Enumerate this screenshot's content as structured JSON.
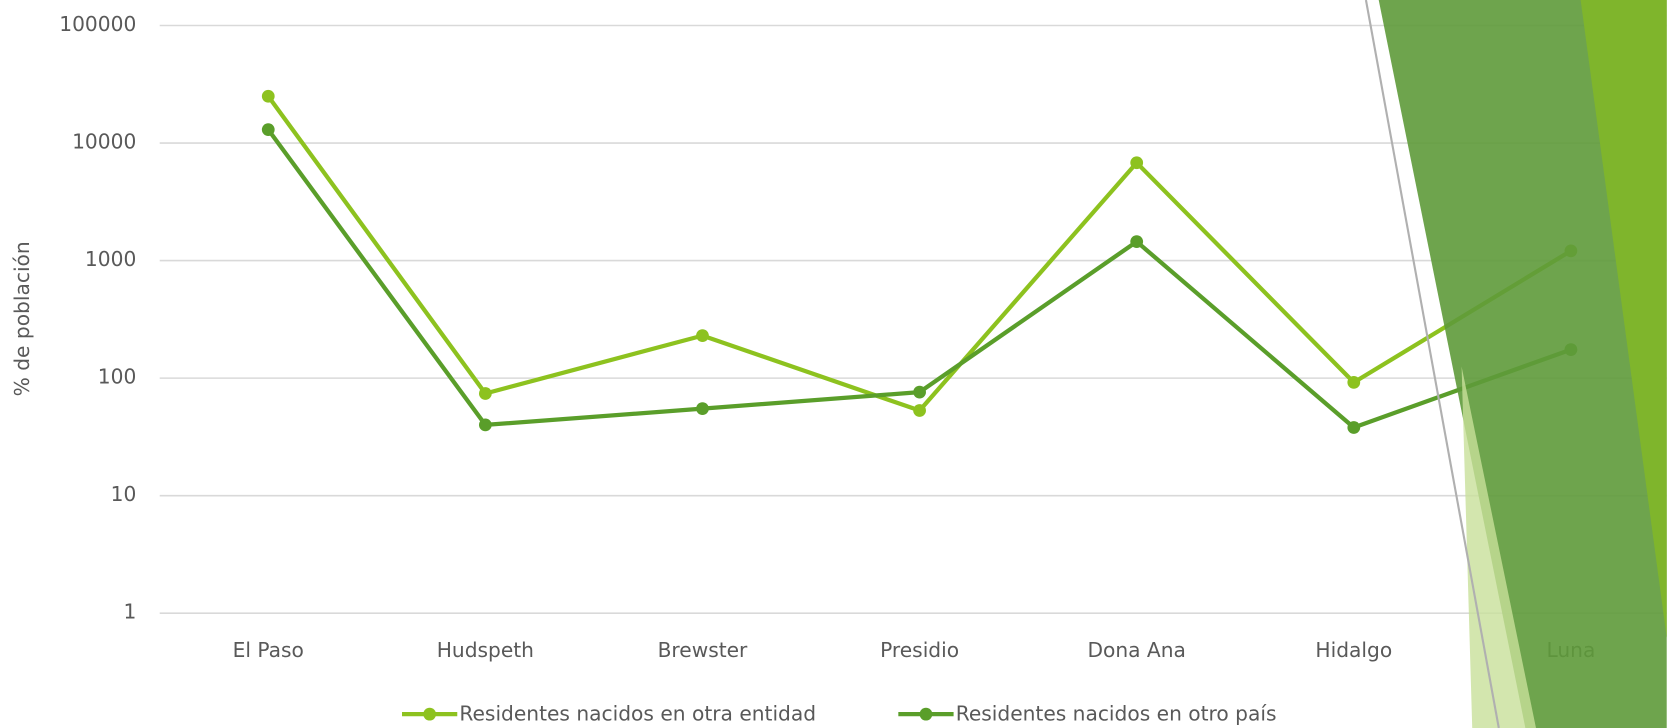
{
  "chart_data": {
    "type": "line",
    "y_label": "% de población",
    "log_scale": true,
    "categories": [
      "El Paso",
      "Hudspeth",
      "Brewster",
      "Presidio",
      "Dona Ana",
      "Hidalgo",
      "Luna"
    ],
    "series": [
      {
        "name": "Residentes nacidos en otra entidad",
        "color": "#8dc21f",
        "values": [
          25000,
          74,
          230,
          53,
          6800,
          92,
          1210
        ]
      },
      {
        "name": "Residentes nacidos en otro país",
        "color": "#5a9e2a",
        "values": [
          13000,
          40,
          55,
          76,
          1450,
          38,
          175
        ]
      }
    ],
    "ylim": [
      1,
      100000
    ],
    "yticks": [
      1,
      10,
      100,
      1000,
      10000,
      100000
    ],
    "grid": true,
    "legend": "bottom"
  }
}
